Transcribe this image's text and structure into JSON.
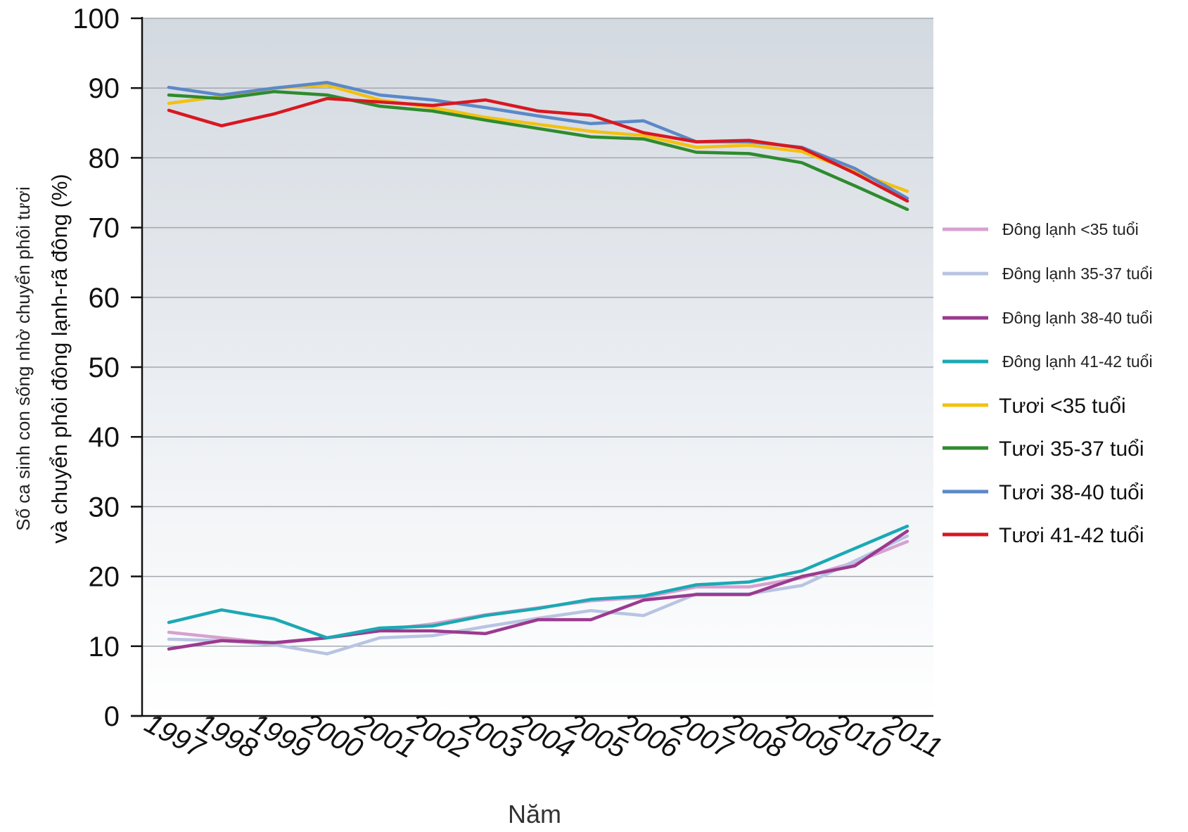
{
  "chart_data": {
    "type": "line",
    "title": "",
    "xlabel": "Năm",
    "ylabel": [
      "Số ca sinh con sống nhờ chuyển phôi tươi",
      "và chuyển phôi đông lạnh-rã đông (%)"
    ],
    "ylim": [
      0,
      100
    ],
    "yticks": [
      0,
      10,
      20,
      30,
      40,
      50,
      60,
      70,
      80,
      90,
      100
    ],
    "grid": true,
    "legend_position": "right",
    "x": [
      1997,
      1998,
      1999,
      2000,
      2001,
      2002,
      2003,
      2004,
      2005,
      2006,
      2007,
      2008,
      2009,
      2010,
      2011
    ],
    "series": [
      {
        "name": "Đông lạnh <35 tuổi",
        "color": "#d7a1d0",
        "values": [
          12,
          11.2,
          10.4,
          11.2,
          12.3,
          13.2,
          14.5,
          15.5,
          16.5,
          17,
          18.5,
          18.5,
          19.8,
          22,
          25
        ]
      },
      {
        "name": "Đông lạnh 35-37 tuổi",
        "color": "#b8c4e2",
        "values": [
          11,
          10.8,
          10.2,
          8.9,
          11.2,
          11.5,
          12.8,
          14,
          15.1,
          14.4,
          17.5,
          17.5,
          18.7,
          22.2,
          25.8
        ]
      },
      {
        "name": "Đông lạnh 38-40 tuổi",
        "color": "#9b3a8f",
        "values": [
          9.6,
          10.8,
          10.5,
          11.2,
          12.2,
          12.2,
          11.8,
          13.8,
          13.8,
          16.6,
          17.4,
          17.4,
          20,
          21.5,
          26.5
        ]
      },
      {
        "name": "Đông lạnh 41-42 tuổi",
        "color": "#1ba9b4",
        "values": [
          13.4,
          15.2,
          13.9,
          11.2,
          12.6,
          12.9,
          14.4,
          15.4,
          16.7,
          17.2,
          18.8,
          19.2,
          20.8,
          24,
          27.2
        ]
      },
      {
        "name": "Tươi <35 tuổi",
        "color": "#f2c111",
        "values": [
          87.8,
          88.8,
          90,
          90.4,
          88.3,
          87.2,
          85.8,
          84.8,
          83.8,
          83.2,
          81.5,
          81.8,
          80.9,
          78,
          75.2
        ]
      },
      {
        "name": "Tươi 35-37 tuổi",
        "color": "#2e8b2e",
        "values": [
          89,
          88.5,
          89.5,
          89,
          87.4,
          86.7,
          85.4,
          84.2,
          83,
          82.7,
          80.8,
          80.6,
          79.3,
          76,
          72.6
        ]
      },
      {
        "name": "Tươi 38-40 tuổi",
        "color": "#5b88c7",
        "values": [
          90.1,
          89,
          90,
          90.8,
          89,
          88.3,
          87.2,
          86,
          84.9,
          85.3,
          82.3,
          82.3,
          81.5,
          78.5,
          74.2
        ]
      },
      {
        "name": "Tươi 41-42 tuổi",
        "color": "#d91720",
        "values": [
          86.8,
          84.6,
          86.3,
          88.5,
          88,
          87.5,
          88.3,
          86.7,
          86.1,
          83.6,
          82.3,
          82.5,
          81.4,
          77.8,
          73.8
        ]
      }
    ]
  }
}
